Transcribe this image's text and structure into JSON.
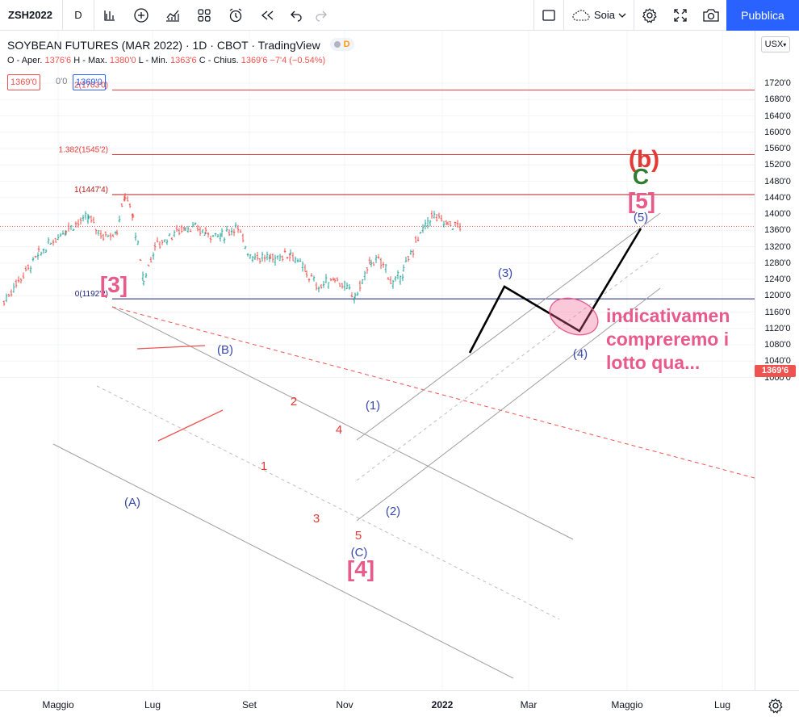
{
  "toolbar": {
    "symbol": "ZSH2022",
    "interval": "D",
    "cloud_label": "Soia",
    "publish_label": "Pubblica",
    "icons": [
      "indicators-icon",
      "add-icon",
      "chart-type-icon",
      "layouts-icon",
      "alert-icon",
      "replay-icon",
      "undo-icon",
      "redo-icon",
      "fullscreen-square-icon",
      "cloud-icon",
      "chevron-down-icon",
      "settings-icon",
      "fullscreen-icon",
      "camera-icon"
    ]
  },
  "legend": {
    "title": "SOYBEAN FUTURES (MAR 2022) · 1D · CBOT · TradingView",
    "badge": "D",
    "ohlc_o_label": "O - Aper.",
    "ohlc_o": "1376'6",
    "ohlc_h_label": "H - Max.",
    "ohlc_h": "1380'0",
    "ohlc_l_label": "L - Min.",
    "ohlc_l": "1363'6",
    "ohlc_c_label": "C - Chius.",
    "ohlc_c": "1369'6",
    "change": "−7'4 (−0.54%)",
    "sell": "1369'0",
    "spread": "0'0",
    "buy": "1369'0"
  },
  "currency": "USX",
  "current_price": "1369'6",
  "price_axis": [
    "1720'0",
    "1680'0",
    "1640'0",
    "1600'0",
    "1560'0",
    "1520'0",
    "1480'0",
    "1440'0",
    "1400'0",
    "1360'0",
    "1320'0",
    "1280'0",
    "1240'0",
    "1200'0",
    "1160'0",
    "1120'0",
    "1080'0",
    "1040'0",
    "1000'0"
  ],
  "time_axis": [
    "Maggio",
    "Lug",
    "Set",
    "Nov",
    "2022",
    "Mar",
    "Maggio",
    "Lug"
  ],
  "fib_levels": [
    {
      "label": "2(1703'0)",
      "price": 1703,
      "color": "#e53935"
    },
    {
      "label": "1.382(1545'2)",
      "price": 1545.25,
      "color": "#e53935"
    },
    {
      "label": "1(1447'4)",
      "price": 1447.5,
      "color": "#b71c1c"
    },
    {
      "label": "0(1192'2)",
      "price": 1192.25,
      "color": "#1a237e"
    }
  ],
  "annotations": {
    "b_wave": "(b)",
    "c_wave": "C",
    "w5_big": "[5]",
    "w5_small": "(5)",
    "w3_big": "[3]",
    "w3_small": "(3)",
    "w4_small": "(4)",
    "wB": "(B)",
    "wA": "(A)",
    "wC": "(C)",
    "w4_big": "[4]",
    "w1_small": "(1)",
    "w2_small": "(2)",
    "n1": "1",
    "n2": "2",
    "n3": "3",
    "n4": "4",
    "n5": "5",
    "note_line1": "indicativamen",
    "note_line2": "compreremo i",
    "note_line3": "lotto qua..."
  },
  "colors": {
    "accent": "#2962ff",
    "down": "#ef5350",
    "up": "#26a69a",
    "pink": "#e85a8a",
    "wave_blue": "#3949ab",
    "wave_red": "#e53935",
    "wave_green": "#2e7d32",
    "channel": "#9e9e9e"
  },
  "chart_data": {
    "type": "candlestick",
    "x_axis": [
      "Maggio",
      "Lug",
      "Set",
      "Nov",
      "2022",
      "Mar",
      "Maggio",
      "Lug"
    ],
    "ylim": [
      970,
      1760
    ],
    "series": [
      {
        "name": "ZSH2022",
        "points": [
          [
            "2021-04-01",
            1185
          ],
          [
            "2021-04-12",
            1230
          ],
          [
            "2021-04-22",
            1300
          ],
          [
            "2021-05-03",
            1365
          ],
          [
            "2021-05-12",
            1390
          ],
          [
            "2021-05-20",
            1345
          ],
          [
            "2021-05-31",
            1360
          ],
          [
            "2021-06-10",
            1447
          ],
          [
            "2021-06-16",
            1390
          ],
          [
            "2021-06-24",
            1235
          ],
          [
            "2021-07-01",
            1320
          ],
          [
            "2021-07-09",
            1345
          ],
          [
            "2021-07-16",
            1370
          ],
          [
            "2021-07-27",
            1355
          ],
          [
            "2021-08-06",
            1345
          ],
          [
            "2021-08-19",
            1370
          ],
          [
            "2021-08-27",
            1300
          ],
          [
            "2021-09-08",
            1290
          ],
          [
            "2021-09-20",
            1305
          ],
          [
            "2021-09-30",
            1255
          ],
          [
            "2021-10-12",
            1220
          ],
          [
            "2021-10-22",
            1245
          ],
          [
            "2021-11-02",
            1195
          ],
          [
            "2021-11-11",
            1285
          ],
          [
            "2021-11-22",
            1280
          ],
          [
            "2021-12-02",
            1225
          ],
          [
            "2021-12-13",
            1260
          ],
          [
            "2021-12-23",
            1330
          ],
          [
            "2022-01-05",
            1395
          ],
          [
            "2022-01-13",
            1375
          ],
          [
            "2022-01-20",
            1370
          ]
        ]
      }
    ]
  }
}
